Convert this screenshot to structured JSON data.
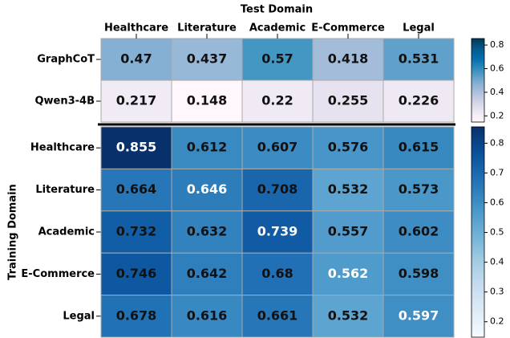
{
  "chart_data": [
    {
      "type": "heatmap",
      "x_label": "Test Domain",
      "categories": [
        "Healthcare",
        "Literature",
        "Academic",
        "E-Commerce",
        "Legal"
      ],
      "rows": [
        "GraphCoT",
        "Qwen3-4B"
      ],
      "values": [
        [
          0.47,
          0.437,
          0.57,
          0.418,
          0.531
        ],
        [
          0.217,
          0.148,
          0.22,
          0.255,
          0.226
        ]
      ],
      "colormap": "PuBu",
      "zlim": [
        0.148,
        0.855
      ],
      "zticks": [
        0.2,
        0.4,
        0.6,
        0.8
      ]
    },
    {
      "type": "heatmap",
      "y_label": "Training Domain",
      "rows": [
        "Healthcare",
        "Literature",
        "Academic",
        "E-Commerce",
        "Legal"
      ],
      "values": [
        [
          0.855,
          0.612,
          0.607,
          0.576,
          0.615
        ],
        [
          0.664,
          0.646,
          0.708,
          0.532,
          0.573
        ],
        [
          0.732,
          0.632,
          0.739,
          0.557,
          0.602
        ],
        [
          0.746,
          0.642,
          0.68,
          0.562,
          0.598
        ],
        [
          0.678,
          0.616,
          0.661,
          0.532,
          0.597
        ]
      ],
      "colormap": "Blues",
      "highlight_diagonal": true,
      "zlim": [
        0.148,
        0.855
      ],
      "zticks": [
        0.2,
        0.3,
        0.4,
        0.5,
        0.6,
        0.7,
        0.8
      ]
    }
  ]
}
